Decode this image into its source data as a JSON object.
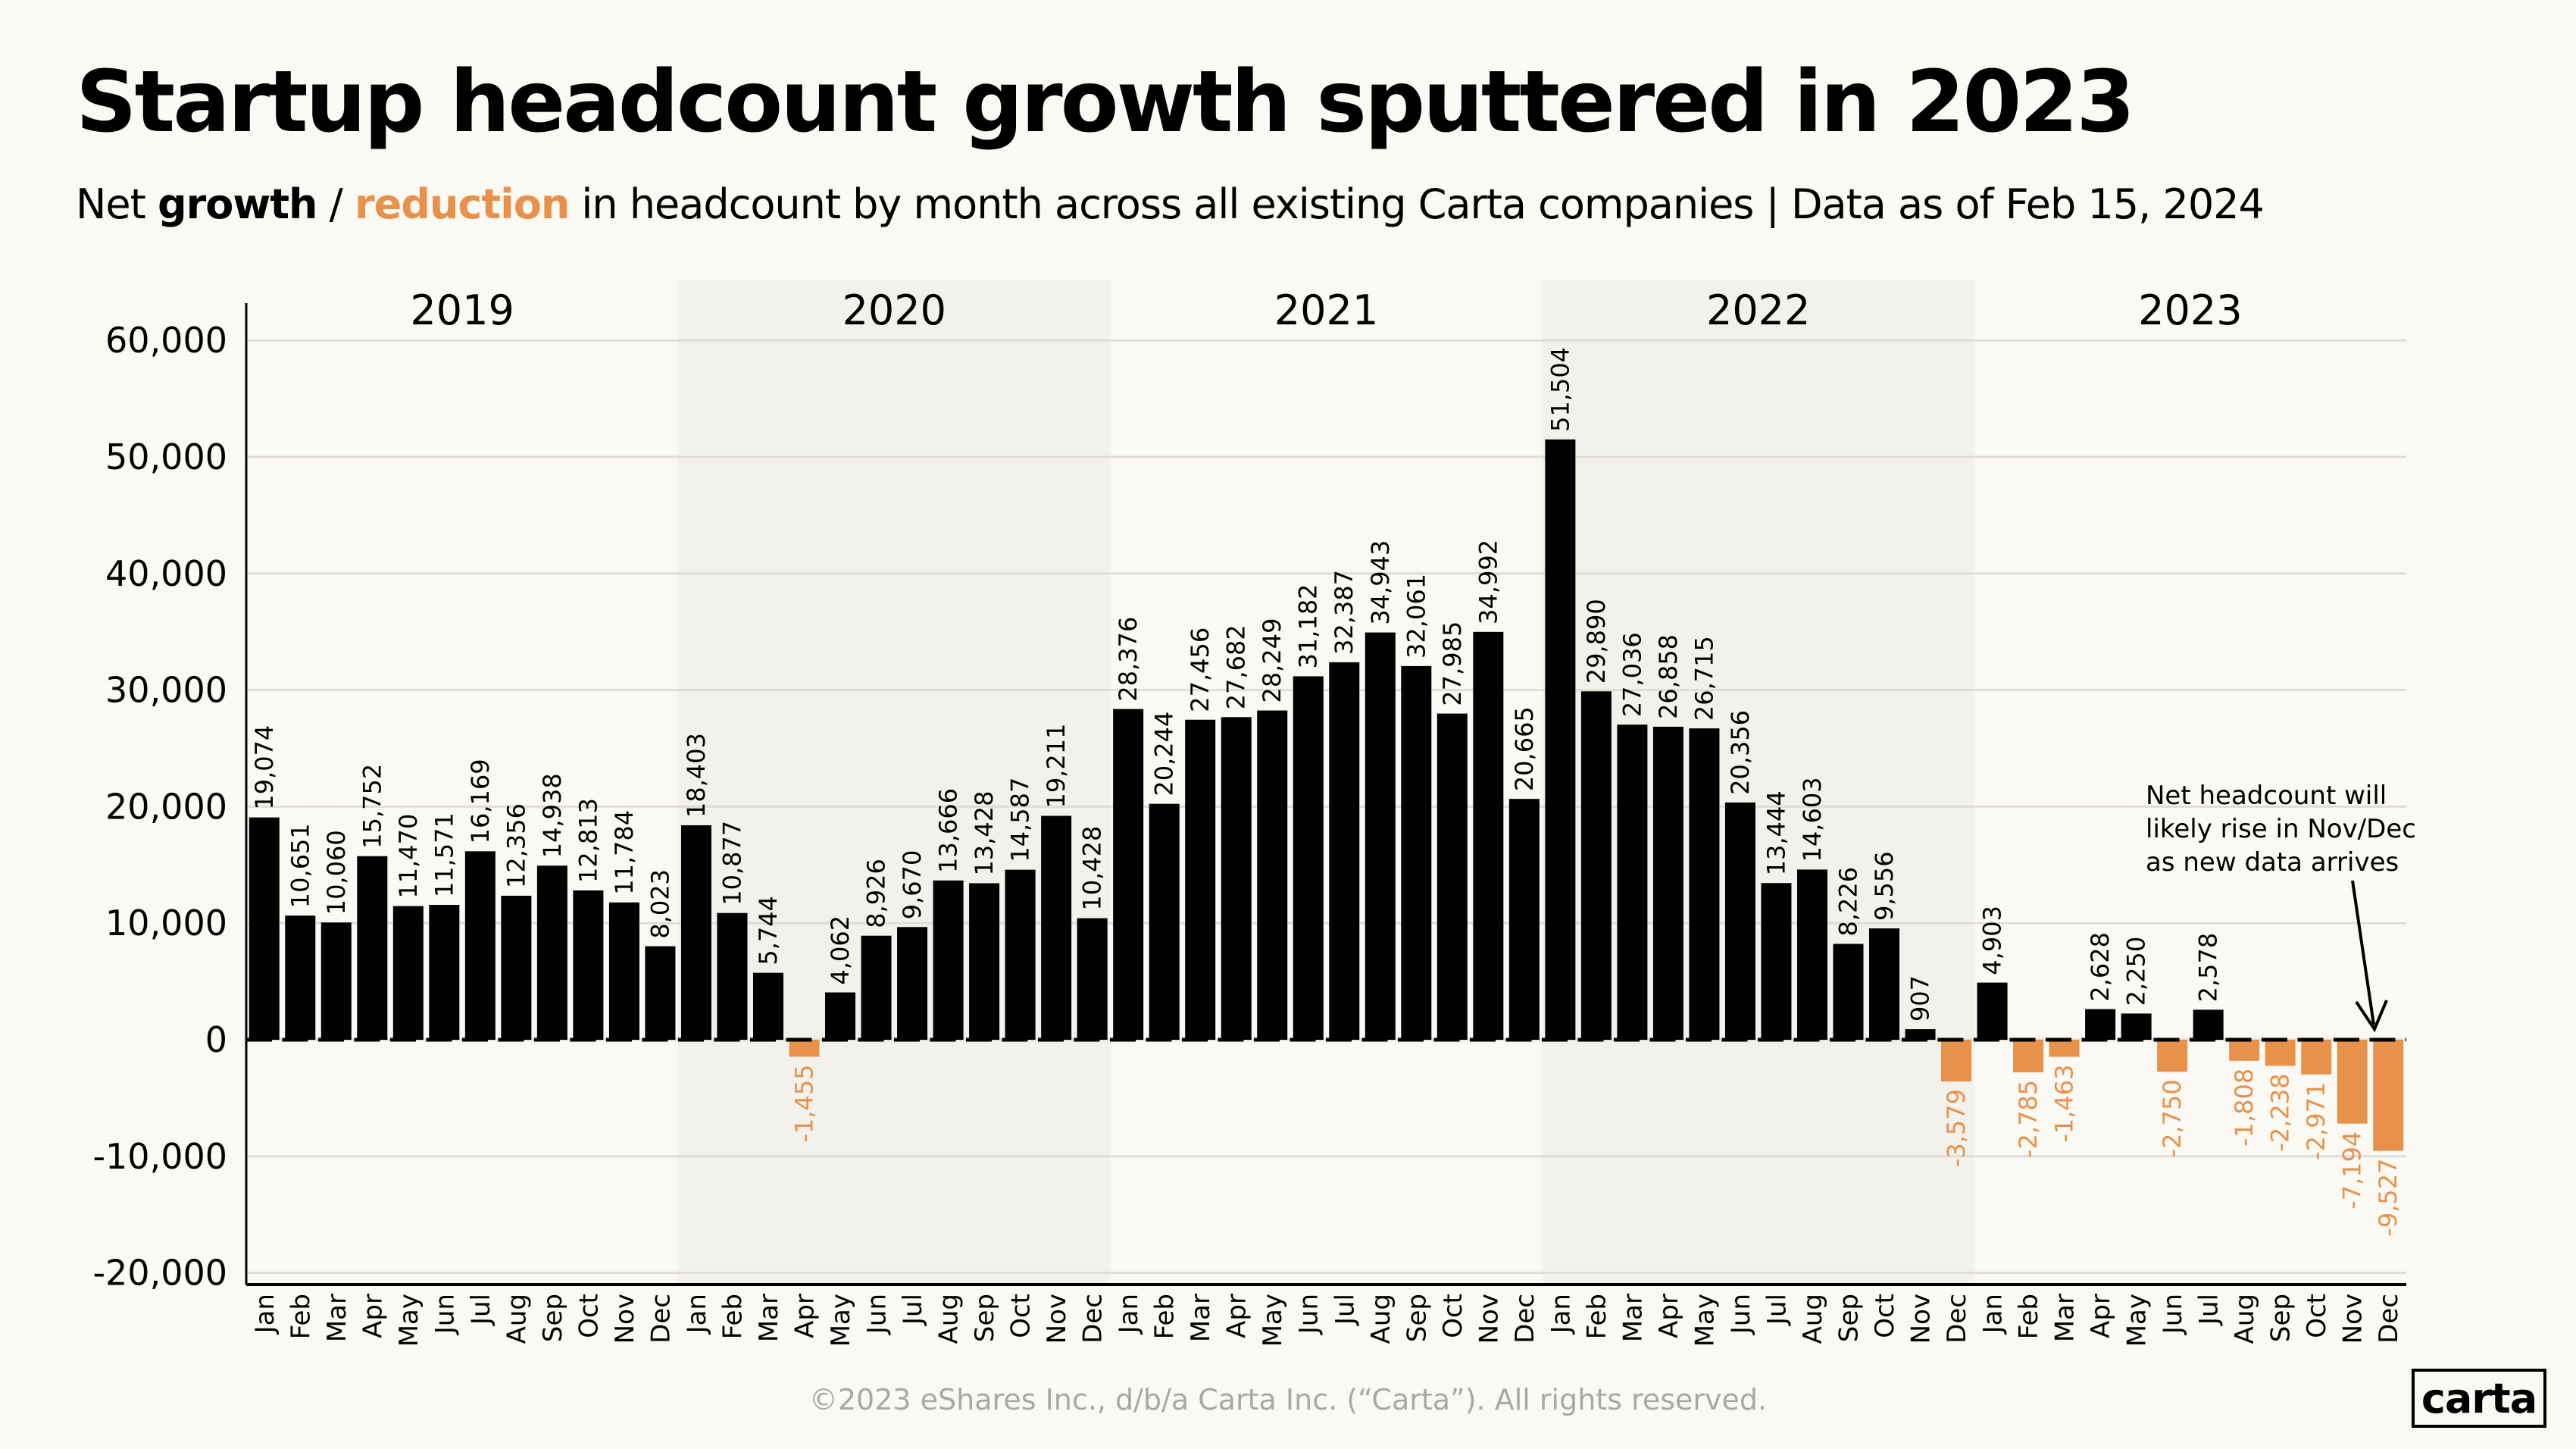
{
  "title": "Startup headcount growth sputtered in 2023",
  "subtitle": {
    "prefix": "Net ",
    "growth": "growth",
    "slash": " / ",
    "reduction": "reduction",
    "suffix": " in headcount by month across all existing Carta companies  |  Data as of Feb 15, 2024"
  },
  "footer": "©2023 eShares Inc., d/b/a Carta Inc. (“Carta”). All rights reserved.",
  "logo_text": "carta",
  "annotation": {
    "lines": [
      "Net headcount will",
      "likely rise in Nov/Dec",
      "as new data arrives"
    ],
    "target_month": "2023 Nov"
  },
  "colors": {
    "background": "#fbf9f4",
    "band": "#f3f1ec",
    "growth": "#000000",
    "reduction": "#e8914a",
    "grid": "#e0ddd7"
  },
  "chart_data": {
    "type": "bar",
    "title": "Startup headcount growth sputtered in 2023",
    "xlabel": "",
    "ylabel": "",
    "ylim": [
      -20000,
      60000
    ],
    "yticks": [
      -20000,
      -10000,
      0,
      10000,
      20000,
      30000,
      40000,
      50000,
      60000
    ],
    "ytick_labels": [
      "-20,000",
      "-10,000",
      "0",
      "10,000",
      "20,000",
      "30,000",
      "40,000",
      "50,000",
      "60,000"
    ],
    "grid": true,
    "years": [
      "2019",
      "2020",
      "2021",
      "2022",
      "2023"
    ],
    "months": [
      "Jan",
      "Feb",
      "Mar",
      "Apr",
      "May",
      "Jun",
      "Jul",
      "Aug",
      "Sep",
      "Oct",
      "Nov",
      "Dec"
    ],
    "values": [
      [
        19074,
        10651,
        10060,
        15752,
        11470,
        11571,
        16169,
        12356,
        14938,
        12813,
        11784,
        8023
      ],
      [
        18403,
        10877,
        5744,
        -1455,
        4062,
        8926,
        9670,
        13666,
        13428,
        14587,
        19211,
        10428
      ],
      [
        28376,
        20244,
        27456,
        27682,
        28249,
        31182,
        32387,
        34943,
        32061,
        27985,
        34992,
        20665
      ],
      [
        51504,
        29890,
        27036,
        26858,
        26715,
        20356,
        13444,
        14603,
        8226,
        9556,
        907,
        -3579
      ],
      [
        4903,
        -2785,
        -1463,
        2628,
        2250,
        -2750,
        2578,
        -1808,
        -2238,
        -2971,
        -7194,
        -9527
      ]
    ]
  }
}
